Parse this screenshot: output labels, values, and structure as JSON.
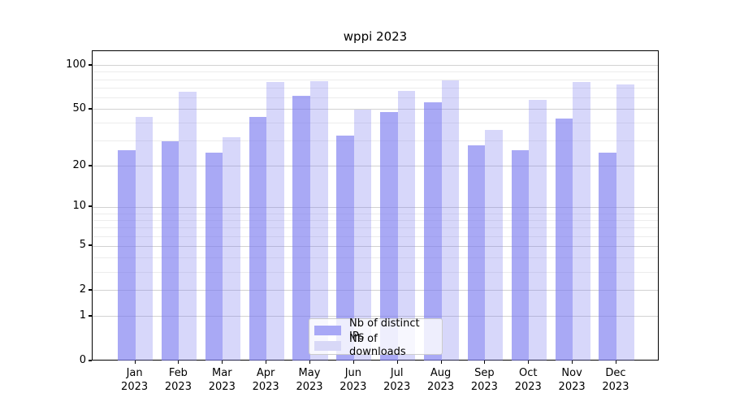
{
  "figure": {
    "title": "wppi 2023",
    "background": "#ffffff"
  },
  "chart_data": {
    "type": "bar",
    "title": "wppi 2023",
    "categories": [
      "Jan 2023",
      "Feb 2023",
      "Mar 2023",
      "Apr 2023",
      "May 2023",
      "Jun 2023",
      "Jul 2023",
      "Aug 2023",
      "Sep 2023",
      "Oct 2023",
      "Nov 2023",
      "Dec 2023"
    ],
    "series": [
      {
        "name": "Nb of distinct IPs",
        "values": [
          26,
          30,
          25,
          44,
          62,
          33,
          48,
          56,
          28,
          26,
          43,
          25
        ]
      },
      {
        "name": "Nb of downloads",
        "values": [
          44,
          66,
          32,
          77,
          78,
          50,
          67,
          79,
          36,
          58,
          77,
          74
        ]
      }
    ],
    "xlabel": "",
    "ylabel": "",
    "yscale": "log1p",
    "ylim": [
      0,
      126
    ],
    "yticks_labeled": [
      0,
      1,
      2,
      5,
      10,
      20,
      50,
      100
    ],
    "ytick_labels": [
      "0",
      "1",
      "2",
      "5",
      "10",
      "20",
      "50",
      "100"
    ],
    "yticks_minor": [
      3,
      4,
      6,
      7,
      8,
      9,
      30,
      40,
      60,
      70,
      80,
      90
    ],
    "grid": "on",
    "legend_position": "lower center inside"
  },
  "legend": {
    "items": [
      {
        "label": "Nb of distinct IPs",
        "swatch_color": "#a8a8f6"
      },
      {
        "label": "Nb of downloads",
        "swatch_color": "#d8d8f7"
      }
    ]
  },
  "colors": {
    "bar_fill_rgba": [
      "rgba(123,123,240,0.65)",
      "rgba(123,123,240,0.30)"
    ],
    "bar_dark": "#a8a8f6",
    "bar_light": "#d8d8f7",
    "grid_major": "#d2d2d2",
    "grid_minor": "#ececec",
    "axis": "#000000",
    "text": "#000000"
  }
}
